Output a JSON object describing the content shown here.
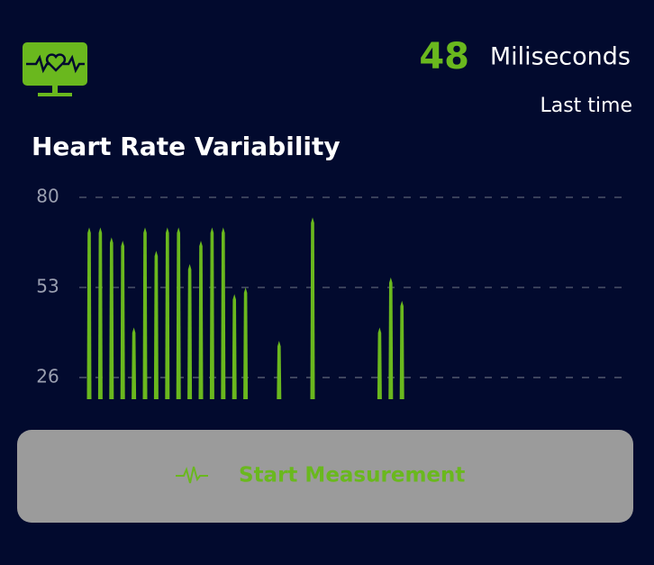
{
  "header": {
    "value": 48,
    "unit": "Miliseconds",
    "caption": "Last time"
  },
  "chart_data": {
    "type": "bar",
    "title": "Heart Rate Variability",
    "values": [
      71,
      71,
      68,
      67,
      41,
      71,
      64,
      71,
      71,
      60,
      67,
      71,
      71,
      51,
      53,
      null,
      null,
      37,
      null,
      null,
      74,
      null,
      null,
      null,
      null,
      null,
      41,
      56,
      49,
      null,
      null,
      null,
      null,
      null,
      null,
      null,
      null,
      null,
      null,
      null,
      null,
      null,
      null,
      null,
      null,
      null,
      null,
      null,
      null
    ],
    "color": "#6ab81e",
    "ylim": [
      19.5,
      80
    ],
    "yticks": [
      80,
      53,
      26
    ],
    "grid": true
  },
  "button": {
    "label": "Start Measurement"
  }
}
